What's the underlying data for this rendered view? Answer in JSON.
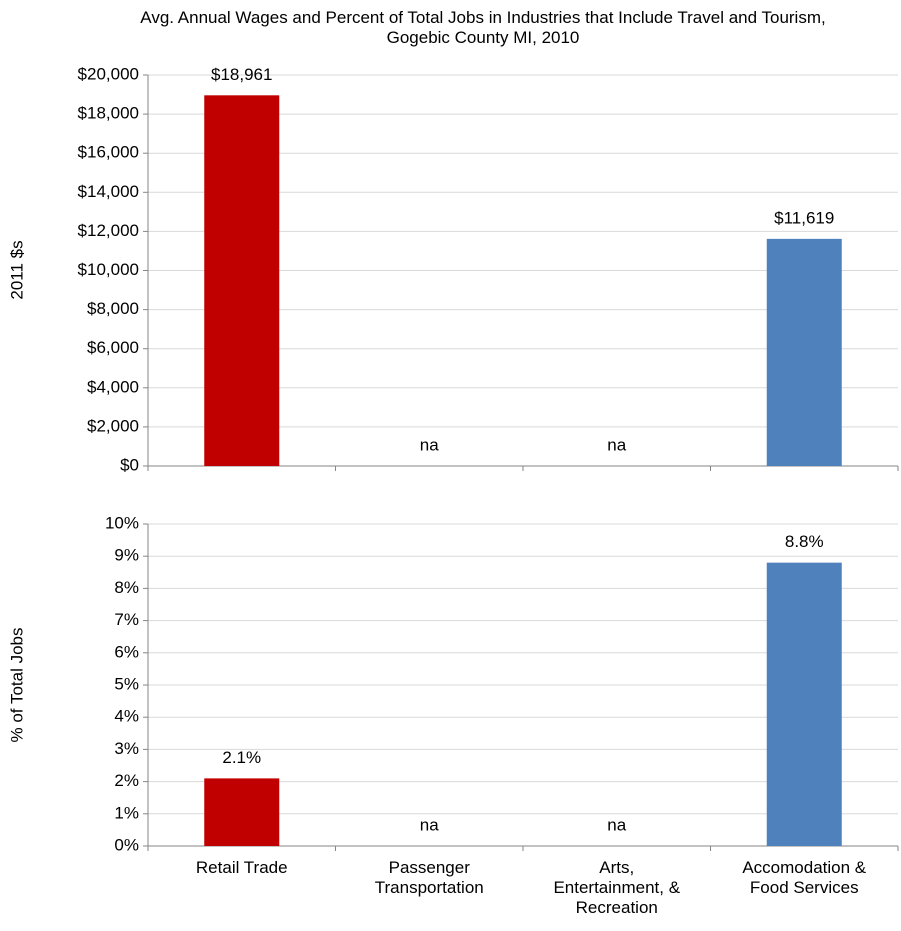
{
  "chart_data": [
    {
      "type": "bar",
      "title": "Avg. Annual Wages and Percent of Total Jobs in Industries that Include Travel and Tourism, Gogebic County MI, 2010",
      "ylabel": "2011 $s",
      "values": [
        18961,
        null,
        null,
        11619
      ],
      "value_labels": [
        "$18,961",
        "na",
        "na",
        "$11,619"
      ],
      "colors": [
        "#c00000",
        "#c00000",
        "#4f81bd",
        "#4f81bd"
      ],
      "ylim": [
        0,
        20000
      ],
      "yticks": [
        {
          "value": 0,
          "label": "$0"
        },
        {
          "value": 2000,
          "label": "$2,000"
        },
        {
          "value": 4000,
          "label": "$4,000"
        },
        {
          "value": 6000,
          "label": "$6,000"
        },
        {
          "value": 8000,
          "label": "$8,000"
        },
        {
          "value": 10000,
          "label": "$10,000"
        },
        {
          "value": 12000,
          "label": "$12,000"
        },
        {
          "value": 14000,
          "label": "$14,000"
        },
        {
          "value": 16000,
          "label": "$16,000"
        },
        {
          "value": 18000,
          "label": "$18,000"
        },
        {
          "value": 20000,
          "label": "$20,000"
        }
      ],
      "grid": true
    },
    {
      "type": "bar",
      "ylabel": "% of Total Jobs",
      "categories": [
        "Retail Trade",
        "Passenger Transportation",
        "Arts, Entertainment, & Recreation",
        "Accomodation & Food Services"
      ],
      "values": [
        2.1,
        null,
        null,
        8.8
      ],
      "value_labels": [
        "2.1%",
        "na",
        "na",
        "8.8%"
      ],
      "colors": [
        "#c00000",
        "#c00000",
        "#4f81bd",
        "#4f81bd"
      ],
      "ylim": [
        0,
        10
      ],
      "yticks": [
        {
          "value": 0,
          "label": "0%"
        },
        {
          "value": 1,
          "label": "1%"
        },
        {
          "value": 2,
          "label": "2%"
        },
        {
          "value": 3,
          "label": "3%"
        },
        {
          "value": 4,
          "label": "4%"
        },
        {
          "value": 5,
          "label": "5%"
        },
        {
          "value": 6,
          "label": "6%"
        },
        {
          "value": 7,
          "label": "7%"
        },
        {
          "value": 8,
          "label": "8%"
        },
        {
          "value": 9,
          "label": "9%"
        },
        {
          "value": 10,
          "label": "10%"
        }
      ],
      "grid": true
    }
  ]
}
